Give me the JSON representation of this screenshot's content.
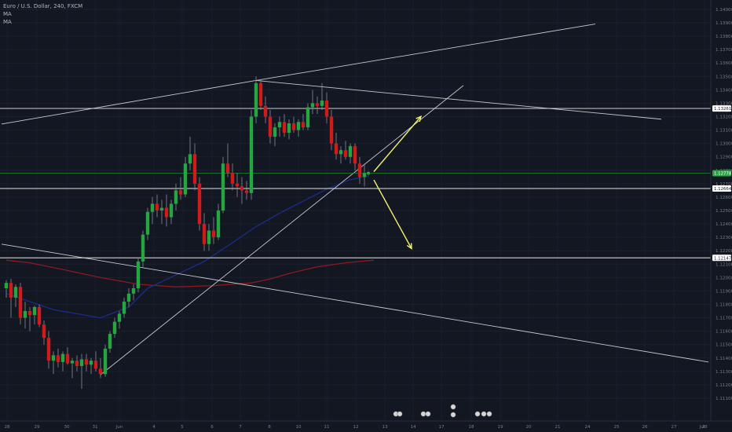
{
  "legend": {
    "title": "Euro / U.S. Dollar, 240, FXCM",
    "ma1": "MA",
    "ma2": "MA"
  },
  "colors": {
    "background": "#131722",
    "up": "#26a641",
    "down": "#d11a1a",
    "wick": "#8a8d96",
    "trendline": "#c7c9cf",
    "level": "#e6e6e6",
    "green_level": "#1b7a2f",
    "ma_fast": "#1c2c8a",
    "ma_slow": "#8a1a22",
    "arrow": "#f3f36a",
    "axis_text": "#787b86",
    "price_badge_bg": "#ffffff",
    "price_badge_text": "#131722",
    "current_badge_bg": "#26a641"
  },
  "chart_data": {
    "type": "candlestick",
    "title": "Euro / U.S. Dollar, 240, FXCM",
    "symbol": "EURUSD",
    "timeframe": "240",
    "source": "FXCM",
    "x_tick_labels": [
      "28",
      "29",
      "30",
      "31",
      "Jun",
      "4",
      "5",
      "6",
      "7",
      "8",
      "10",
      "11",
      "12",
      "13",
      "14",
      "17",
      "18",
      "19",
      "20",
      "21",
      "24",
      "25",
      "26",
      "27",
      "28",
      "Jul"
    ],
    "y_tick_labels": [
      "1.14000",
      "1.13900",
      "1.13800",
      "1.13700",
      "1.13600",
      "1.13500",
      "1.13400",
      "1.13300",
      "1.13200",
      "1.13100",
      "1.13000",
      "1.12900",
      "1.12800",
      "1.12700",
      "1.12600",
      "1.12500",
      "1.12400",
      "1.12300",
      "1.12200",
      "1.12100",
      "1.12000",
      "1.11900",
      "1.11800",
      "1.11700",
      "1.11600",
      "1.11500",
      "1.11400",
      "1.11300",
      "1.11200",
      "1.11100"
    ],
    "ylim": [
      1.1093,
      1.1407
    ],
    "price_badges": [
      {
        "label": "1.13261",
        "value": 1.13261
      },
      {
        "label": "1.12778",
        "value": 1.12778,
        "current": true
      },
      {
        "label": "1.12664",
        "value": 1.12664
      },
      {
        "label": "1.12147",
        "value": 1.12147
      }
    ],
    "horizontal_levels": [
      1.13261,
      1.12664,
      1.12147
    ],
    "current_price": 1.12778,
    "candles_ohlc": [
      [
        1.1192,
        1.1198,
        1.1185,
        1.1196
      ],
      [
        1.1196,
        1.1199,
        1.117,
        1.1185
      ],
      [
        1.1185,
        1.1195,
        1.1178,
        1.1193
      ],
      [
        1.1193,
        1.1196,
        1.1165,
        1.117
      ],
      [
        1.117,
        1.1182,
        1.1162,
        1.1175
      ],
      [
        1.1175,
        1.1178,
        1.116,
        1.1172
      ],
      [
        1.1172,
        1.1179,
        1.1165,
        1.1178
      ],
      [
        1.1178,
        1.118,
        1.1163,
        1.1165
      ],
      [
        1.1165,
        1.1168,
        1.115,
        1.1155
      ],
      [
        1.1155,
        1.116,
        1.1132,
        1.1138
      ],
      [
        1.1138,
        1.1145,
        1.1128,
        1.1142
      ],
      [
        1.1142,
        1.1147,
        1.1133,
        1.1137
      ],
      [
        1.1137,
        1.1145,
        1.113,
        1.1143
      ],
      [
        1.1143,
        1.1148,
        1.1135,
        1.1136
      ],
      [
        1.1136,
        1.114,
        1.1125,
        1.1138
      ],
      [
        1.1138,
        1.1142,
        1.113,
        1.1134
      ],
      [
        1.1134,
        1.1143,
        1.1117,
        1.1139
      ],
      [
        1.1139,
        1.1143,
        1.113,
        1.1135
      ],
      [
        1.1135,
        1.114,
        1.1128,
        1.1138
      ],
      [
        1.1138,
        1.1145,
        1.113,
        1.1132
      ],
      [
        1.1132,
        1.114,
        1.1125,
        1.1128
      ],
      [
        1.1128,
        1.115,
        1.1126,
        1.1147
      ],
      [
        1.1147,
        1.116,
        1.1144,
        1.1158
      ],
      [
        1.1158,
        1.117,
        1.1155,
        1.1167
      ],
      [
        1.1167,
        1.1175,
        1.1162,
        1.1173
      ],
      [
        1.1173,
        1.1185,
        1.117,
        1.1182
      ],
      [
        1.1182,
        1.1192,
        1.1178,
        1.1188
      ],
      [
        1.1188,
        1.1195,
        1.1183,
        1.1192
      ],
      [
        1.1192,
        1.1215,
        1.1189,
        1.1212
      ],
      [
        1.1212,
        1.1235,
        1.1208,
        1.1232
      ],
      [
        1.1232,
        1.1252,
        1.1228,
        1.1249
      ],
      [
        1.1249,
        1.126,
        1.124,
        1.1255
      ],
      [
        1.1255,
        1.1262,
        1.1245,
        1.125
      ],
      [
        1.125,
        1.1258,
        1.124,
        1.1252
      ],
      [
        1.1252,
        1.1262,
        1.1238,
        1.1245
      ],
      [
        1.1245,
        1.1258,
        1.124,
        1.1255
      ],
      [
        1.1255,
        1.127,
        1.125,
        1.1265
      ],
      [
        1.1265,
        1.1275,
        1.1258,
        1.1262
      ],
      [
        1.1262,
        1.129,
        1.126,
        1.1285
      ],
      [
        1.1285,
        1.1305,
        1.128,
        1.1292
      ],
      [
        1.1292,
        1.13,
        1.1265,
        1.127
      ],
      [
        1.127,
        1.1275,
        1.1235,
        1.124
      ],
      [
        1.124,
        1.1248,
        1.122,
        1.1225
      ],
      [
        1.1225,
        1.124,
        1.122,
        1.1235
      ],
      [
        1.1235,
        1.1245,
        1.1225,
        1.123
      ],
      [
        1.123,
        1.1255,
        1.1228,
        1.125
      ],
      [
        1.125,
        1.129,
        1.1248,
        1.1285
      ],
      [
        1.1285,
        1.13,
        1.1275,
        1.1278
      ],
      [
        1.1278,
        1.1285,
        1.1265,
        1.127
      ],
      [
        1.127,
        1.1278,
        1.126,
        1.1268
      ],
      [
        1.1268,
        1.1275,
        1.1255,
        1.1265
      ],
      [
        1.1265,
        1.1272,
        1.1258,
        1.1263
      ],
      [
        1.1263,
        1.1325,
        1.1258,
        1.132
      ],
      [
        1.132,
        1.135,
        1.1315,
        1.1345
      ],
      [
        1.1345,
        1.1348,
        1.1325,
        1.1328
      ],
      [
        1.1328,
        1.1335,
        1.1315,
        1.132
      ],
      [
        1.132,
        1.1325,
        1.13,
        1.1305
      ],
      [
        1.1305,
        1.1315,
        1.1298,
        1.1312
      ],
      [
        1.1312,
        1.132,
        1.1305,
        1.1316
      ],
      [
        1.1316,
        1.1322,
        1.1305,
        1.1308
      ],
      [
        1.1308,
        1.1318,
        1.1303,
        1.1315
      ],
      [
        1.1315,
        1.132,
        1.1308,
        1.131
      ],
      [
        1.131,
        1.1318,
        1.1305,
        1.1316
      ],
      [
        1.1316,
        1.1322,
        1.131,
        1.1312
      ],
      [
        1.1312,
        1.133,
        1.131,
        1.1327
      ],
      [
        1.1327,
        1.134,
        1.1322,
        1.133
      ],
      [
        1.133,
        1.1335,
        1.1322,
        1.1328
      ],
      [
        1.1328,
        1.1345,
        1.1325,
        1.1332
      ],
      [
        1.1332,
        1.1338,
        1.1315,
        1.132
      ],
      [
        1.132,
        1.1325,
        1.1295,
        1.13
      ],
      [
        1.13,
        1.1308,
        1.1288,
        1.1292
      ],
      [
        1.1292,
        1.1298,
        1.1285,
        1.1295
      ],
      [
        1.1295,
        1.1302,
        1.1288,
        1.129
      ],
      [
        1.129,
        1.13,
        1.1285,
        1.1298
      ],
      [
        1.1298,
        1.13,
        1.128,
        1.1285
      ],
      [
        1.1285,
        1.129,
        1.127,
        1.1275
      ],
      [
        1.1275,
        1.1285,
        1.1268,
        1.1278
      ]
    ],
    "ma_fast": [
      [
        0,
        1.1188
      ],
      [
        10,
        1.1176
      ],
      [
        20,
        1.117
      ],
      [
        26,
        1.1178
      ],
      [
        30,
        1.1192
      ],
      [
        36,
        1.1202
      ],
      [
        42,
        1.1212
      ],
      [
        48,
        1.1226
      ],
      [
        53,
        1.1238
      ],
      [
        58,
        1.1248
      ],
      [
        63,
        1.1257
      ],
      [
        68,
        1.1266
      ],
      [
        73,
        1.1273
      ],
      [
        77,
        1.1276
      ]
    ],
    "ma_slow": [
      [
        0,
        1.1213
      ],
      [
        5,
        1.1211
      ],
      [
        12,
        1.1206
      ],
      [
        20,
        1.12
      ],
      [
        28,
        1.1195
      ],
      [
        36,
        1.1193
      ],
      [
        44,
        1.1194
      ],
      [
        52,
        1.1196
      ],
      [
        56,
        1.1199
      ],
      [
        60,
        1.1203
      ],
      [
        66,
        1.1208
      ],
      [
        72,
        1.1211
      ],
      [
        78,
        1.1213
      ]
    ],
    "trendlines": [
      {
        "from": [
          -1,
          1.13145
        ],
        "to": [
          53,
          1.1347
        ]
      },
      {
        "from": [
          53,
          1.1347
        ],
        "to": [
          139,
          1.13181
        ]
      },
      {
        "from": [
          53,
          1.1347
        ],
        "to": [
          125,
          1.13891
        ]
      },
      {
        "from": [
          20,
          1.11275
        ],
        "to": [
          97,
          1.13432
        ]
      },
      {
        "from": [
          -1,
          1.12249
        ],
        "to": [
          149,
          1.1137
        ]
      }
    ],
    "arrows": [
      {
        "from": [
          78,
          1.1279
        ],
        "to": [
          88,
          1.13202
        ]
      },
      {
        "from": [
          78,
          1.12728
        ],
        "to": [
          86,
          1.12216
        ]
      }
    ],
    "grid": true,
    "legend_position": "top-left"
  }
}
